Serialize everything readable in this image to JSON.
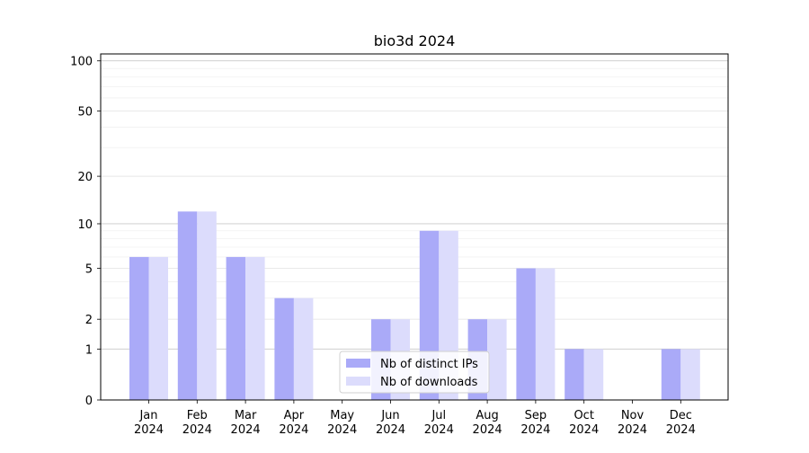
{
  "chart_data": {
    "type": "bar",
    "title": "bio3d 2024",
    "xlabel": "",
    "ylabel": "",
    "y_scale": "symlog",
    "ylim": [
      0,
      110
    ],
    "y_ticks": [
      0,
      1,
      2,
      5,
      10,
      20,
      50,
      100
    ],
    "y_tick_labels": [
      "0",
      "1",
      "2",
      "5",
      "10",
      "20",
      "50",
      "100"
    ],
    "categories": [
      "Jan\n2024",
      "Feb\n2024",
      "Mar\n2024",
      "Apr\n2024",
      "May\n2024",
      "Jun\n2024",
      "Jul\n2024",
      "Aug\n2024",
      "Sep\n2024",
      "Oct\n2024",
      "Nov\n2024",
      "Dec\n2024"
    ],
    "series": [
      {
        "name": "Nb of distinct IPs",
        "color": "#aaaaf8",
        "values": [
          6,
          12,
          6,
          3,
          0,
          2,
          9,
          2,
          5,
          1,
          0,
          1
        ]
      },
      {
        "name": "Nb of downloads",
        "color": "#dcdcfc",
        "values": [
          6,
          12,
          6,
          3,
          0,
          2,
          9,
          2,
          5,
          1,
          0,
          1
        ]
      }
    ],
    "grid": true,
    "legend_position": "lower center"
  }
}
